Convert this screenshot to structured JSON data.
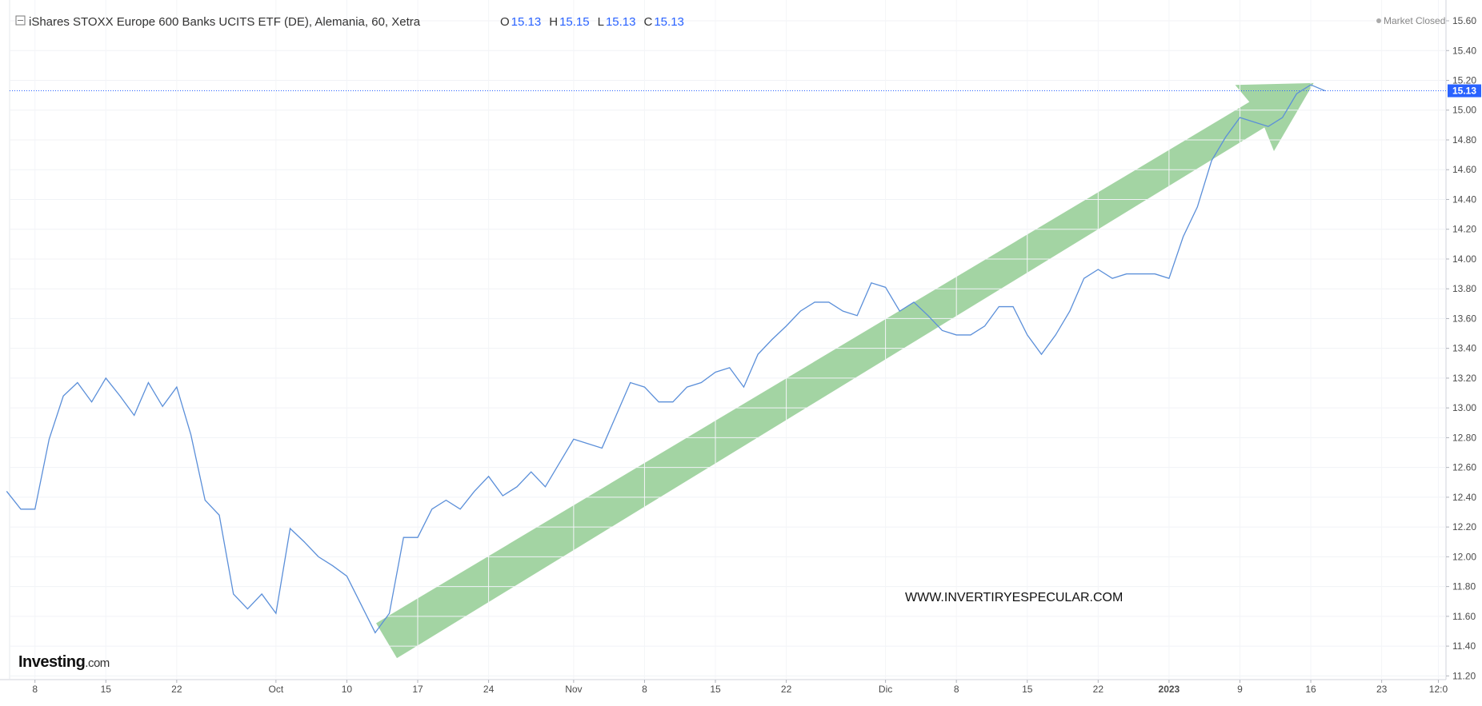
{
  "chart_data": {
    "type": "line",
    "title": "iShares STOXX Europe 600 Banks UCITS ETF (DE), Alemania, 60, Xetra",
    "ohlc": [
      {
        "label": "O",
        "value": 15.13
      },
      {
        "label": "H",
        "value": 15.15
      },
      {
        "label": "L",
        "value": 15.13
      },
      {
        "label": "C",
        "value": 15.13
      }
    ],
    "status": "Market Closed",
    "watermark": "WWW.INVERTIRYESPECULAR.COM",
    "logo": {
      "brand": "Investing",
      "suffix": ".com"
    },
    "last_price": 15.13,
    "grid": true,
    "categories": [
      null,
      null,
      "8",
      null,
      null,
      null,
      null,
      "15",
      null,
      null,
      null,
      null,
      "22",
      null,
      null,
      null,
      null,
      null,
      null,
      "Oct",
      null,
      null,
      null,
      null,
      "10",
      null,
      null,
      null,
      null,
      "17",
      null,
      null,
      null,
      null,
      "24",
      null,
      null,
      null,
      null,
      null,
      "Nov",
      null,
      null,
      null,
      null,
      "8",
      null,
      null,
      null,
      null,
      "15",
      null,
      null,
      null,
      null,
      "22",
      null,
      null,
      null,
      null,
      null,
      null,
      "Dic",
      null,
      null,
      null,
      null,
      "8",
      null,
      null,
      null,
      null,
      "15",
      null,
      null,
      null,
      null,
      "22",
      null,
      null,
      null,
      null,
      "2023",
      null,
      null,
      null,
      null,
      "9",
      null,
      null,
      null,
      null,
      "16",
      null,
      null,
      null,
      null,
      "23",
      null,
      null,
      null,
      "12:0"
    ],
    "series": [
      {
        "color": "#5b8fd9",
        "values": [
          12.44,
          12.32,
          12.32,
          12.79,
          13.08,
          13.17,
          13.04,
          13.2,
          13.08,
          12.95,
          13.17,
          13.01,
          13.14,
          12.82,
          12.38,
          12.28,
          11.75,
          11.65,
          11.75,
          11.62,
          12.19,
          12.1,
          12.0,
          11.94,
          11.87,
          11.68,
          11.49,
          11.62,
          12.13,
          12.13,
          12.32,
          12.38,
          12.32,
          12.44,
          12.54,
          12.41,
          12.47,
          12.57,
          12.47,
          12.63,
          12.79,
          12.76,
          12.73,
          12.95,
          13.17,
          13.14,
          13.04,
          13.04,
          13.14,
          13.17,
          13.24,
          13.27,
          13.14,
          13.36,
          13.46,
          13.55,
          13.65,
          13.71,
          13.71,
          13.65,
          13.62,
          13.84,
          13.81,
          13.65,
          13.71,
          13.62,
          13.52,
          13.49,
          13.49,
          13.55,
          13.68,
          13.68,
          13.49,
          13.36,
          13.49,
          13.65,
          13.87,
          13.93,
          13.87,
          13.9,
          13.9,
          13.9,
          13.87,
          14.15,
          14.35,
          14.66,
          14.82,
          14.95,
          14.92,
          14.89,
          14.95,
          15.11,
          15.17,
          15.13,
          null,
          null,
          null,
          null,
          null,
          null,
          null,
          null
        ]
      }
    ],
    "ylim": [
      11.175,
      15.708
    ],
    "yticks": [
      {
        "value": 11.2,
        "label": "11.20"
      },
      {
        "value": 11.4,
        "label": "11.40"
      },
      {
        "value": 11.6,
        "label": "11.60"
      },
      {
        "value": 11.8,
        "label": "11.80"
      },
      {
        "value": 12.0,
        "label": "12.00"
      },
      {
        "value": 12.2,
        "label": "12.20"
      },
      {
        "value": 12.4,
        "label": "12.40"
      },
      {
        "value": 12.6,
        "label": "12.60"
      },
      {
        "value": 12.8,
        "label": "12.80"
      },
      {
        "value": 13.0,
        "label": "13.00"
      },
      {
        "value": 13.2,
        "label": "13.20"
      },
      {
        "value": 13.4,
        "label": "13.40"
      },
      {
        "value": 13.6,
        "label": "13.60"
      },
      {
        "value": 13.8,
        "label": "13.80"
      },
      {
        "value": 14.0,
        "label": "14.00"
      },
      {
        "value": 14.2,
        "label": "14.20"
      },
      {
        "value": 14.4,
        "label": "14.40"
      },
      {
        "value": 14.6,
        "label": "14.60"
      },
      {
        "value": 14.8,
        "label": "14.80"
      },
      {
        "value": 15.0,
        "label": "15.00"
      },
      {
        "value": 15.2,
        "label": "15.20"
      },
      {
        "value": 15.4,
        "label": "15.40"
      },
      {
        "value": 15.6,
        "label": "15.60"
      }
    ]
  }
}
